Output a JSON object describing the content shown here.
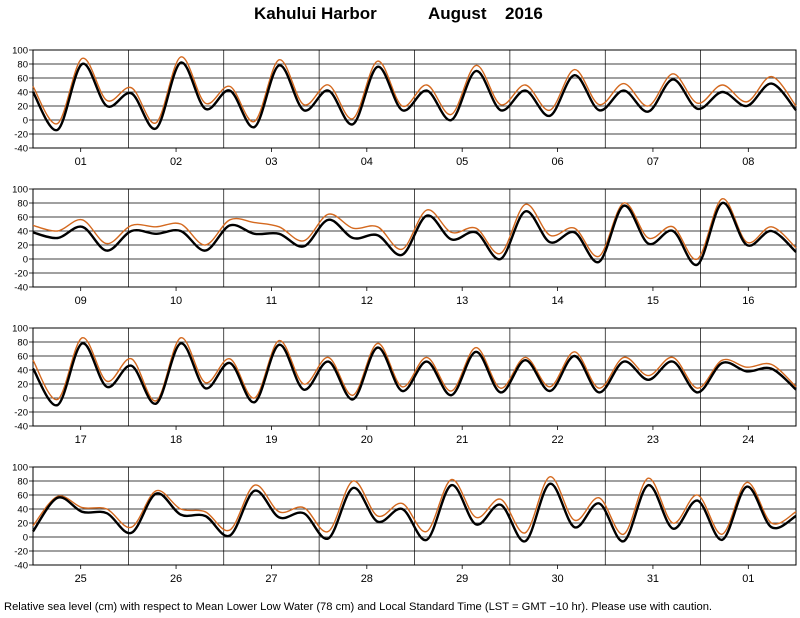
{
  "title": {
    "station": "Kahului Harbor",
    "month": "August",
    "year": "2016"
  },
  "footer": "Relative sea level (cm) with respect to Mean Lower Low Water (78 cm) and Local Standard Time (LST = GMT −10 hr). Please use with caution.",
  "colors": {
    "observed": "#d4691f",
    "predicted": "#000000",
    "grid": "#000000"
  },
  "chart_data": [
    {
      "type": "line",
      "panel": 1,
      "days": [
        "01",
        "02",
        "03",
        "04",
        "05",
        "06",
        "07",
        "08"
      ],
      "ylim": [
        -40,
        100
      ],
      "yticks": [
        -40,
        -20,
        0,
        20,
        40,
        60,
        80,
        100
      ],
      "grid": true,
      "series": [
        {
          "values": [
            40,
            -14,
            80,
            20,
            38,
            -12,
            82,
            16,
            42,
            -10,
            78,
            14,
            42,
            -6,
            76,
            14,
            42,
            0,
            70,
            14,
            42,
            6,
            64,
            14,
            42,
            12,
            58,
            16,
            40,
            20,
            52,
            14
          ]
        },
        {
          "values": [
            48,
            -5,
            88,
            28,
            46,
            -4,
            90,
            24,
            48,
            -2,
            86,
            22,
            50,
            2,
            84,
            20,
            50,
            8,
            78,
            22,
            50,
            14,
            72,
            22,
            52,
            20,
            66,
            24,
            50,
            26,
            62,
            20
          ]
        }
      ]
    },
    {
      "type": "line",
      "panel": 2,
      "days": [
        "09",
        "10",
        "11",
        "12",
        "13",
        "14",
        "15",
        "16"
      ],
      "ylim": [
        -40,
        100
      ],
      "yticks": [
        -40,
        -20,
        0,
        20,
        40,
        60,
        80,
        100
      ],
      "grid": true,
      "series": [
        {
          "values": [
            38,
            30,
            46,
            12,
            40,
            36,
            40,
            12,
            48,
            36,
            36,
            18,
            56,
            30,
            34,
            6,
            62,
            28,
            38,
            0,
            68,
            24,
            38,
            -4,
            76,
            22,
            40,
            -8,
            80,
            20,
            40,
            10
          ]
        },
        {
          "values": [
            48,
            40,
            56,
            22,
            48,
            46,
            50,
            20,
            56,
            52,
            46,
            26,
            64,
            44,
            46,
            14,
            70,
            38,
            44,
            8,
            78,
            34,
            44,
            4,
            80,
            30,
            46,
            0,
            86,
            24,
            46,
            16
          ]
        }
      ]
    },
    {
      "type": "line",
      "panel": 3,
      "days": [
        "17",
        "18",
        "19",
        "20",
        "21",
        "22",
        "23",
        "24"
      ],
      "ylim": [
        -40,
        100
      ],
      "yticks": [
        -40,
        -20,
        0,
        20,
        40,
        60,
        80,
        100
      ],
      "grid": true,
      "series": [
        {
          "values": [
            42,
            -10,
            78,
            16,
            46,
            -8,
            78,
            14,
            50,
            -6,
            76,
            12,
            52,
            -2,
            72,
            10,
            52,
            4,
            66,
            8,
            54,
            10,
            60,
            8,
            52,
            26,
            52,
            8,
            50,
            38,
            42,
            12
          ]
        },
        {
          "values": [
            54,
            -2,
            86,
            24,
            56,
            -4,
            86,
            22,
            56,
            0,
            82,
            20,
            58,
            4,
            78,
            16,
            58,
            10,
            72,
            14,
            58,
            16,
            66,
            14,
            58,
            32,
            58,
            14,
            54,
            44,
            48,
            16
          ]
        }
      ]
    },
    {
      "type": "line",
      "panel": 4,
      "days": [
        "25",
        "26",
        "27",
        "28",
        "29",
        "30",
        "31",
        "01"
      ],
      "ylim": [
        -40,
        100
      ],
      "yticks": [
        -40,
        -20,
        0,
        20,
        40,
        60,
        80,
        100
      ],
      "grid": true,
      "series": [
        {
          "values": [
            8,
            56,
            36,
            34,
            6,
            62,
            32,
            30,
            2,
            66,
            28,
            34,
            -2,
            70,
            22,
            40,
            -4,
            74,
            18,
            46,
            -6,
            76,
            14,
            48,
            -6,
            74,
            12,
            52,
            -4,
            72,
            14,
            30
          ]
        },
        {
          "values": [
            16,
            58,
            42,
            40,
            14,
            66,
            40,
            36,
            10,
            74,
            36,
            42,
            8,
            80,
            30,
            48,
            8,
            82,
            28,
            54,
            6,
            86,
            24,
            56,
            4,
            84,
            20,
            60,
            4,
            78,
            20,
            36
          ]
        }
      ]
    }
  ]
}
